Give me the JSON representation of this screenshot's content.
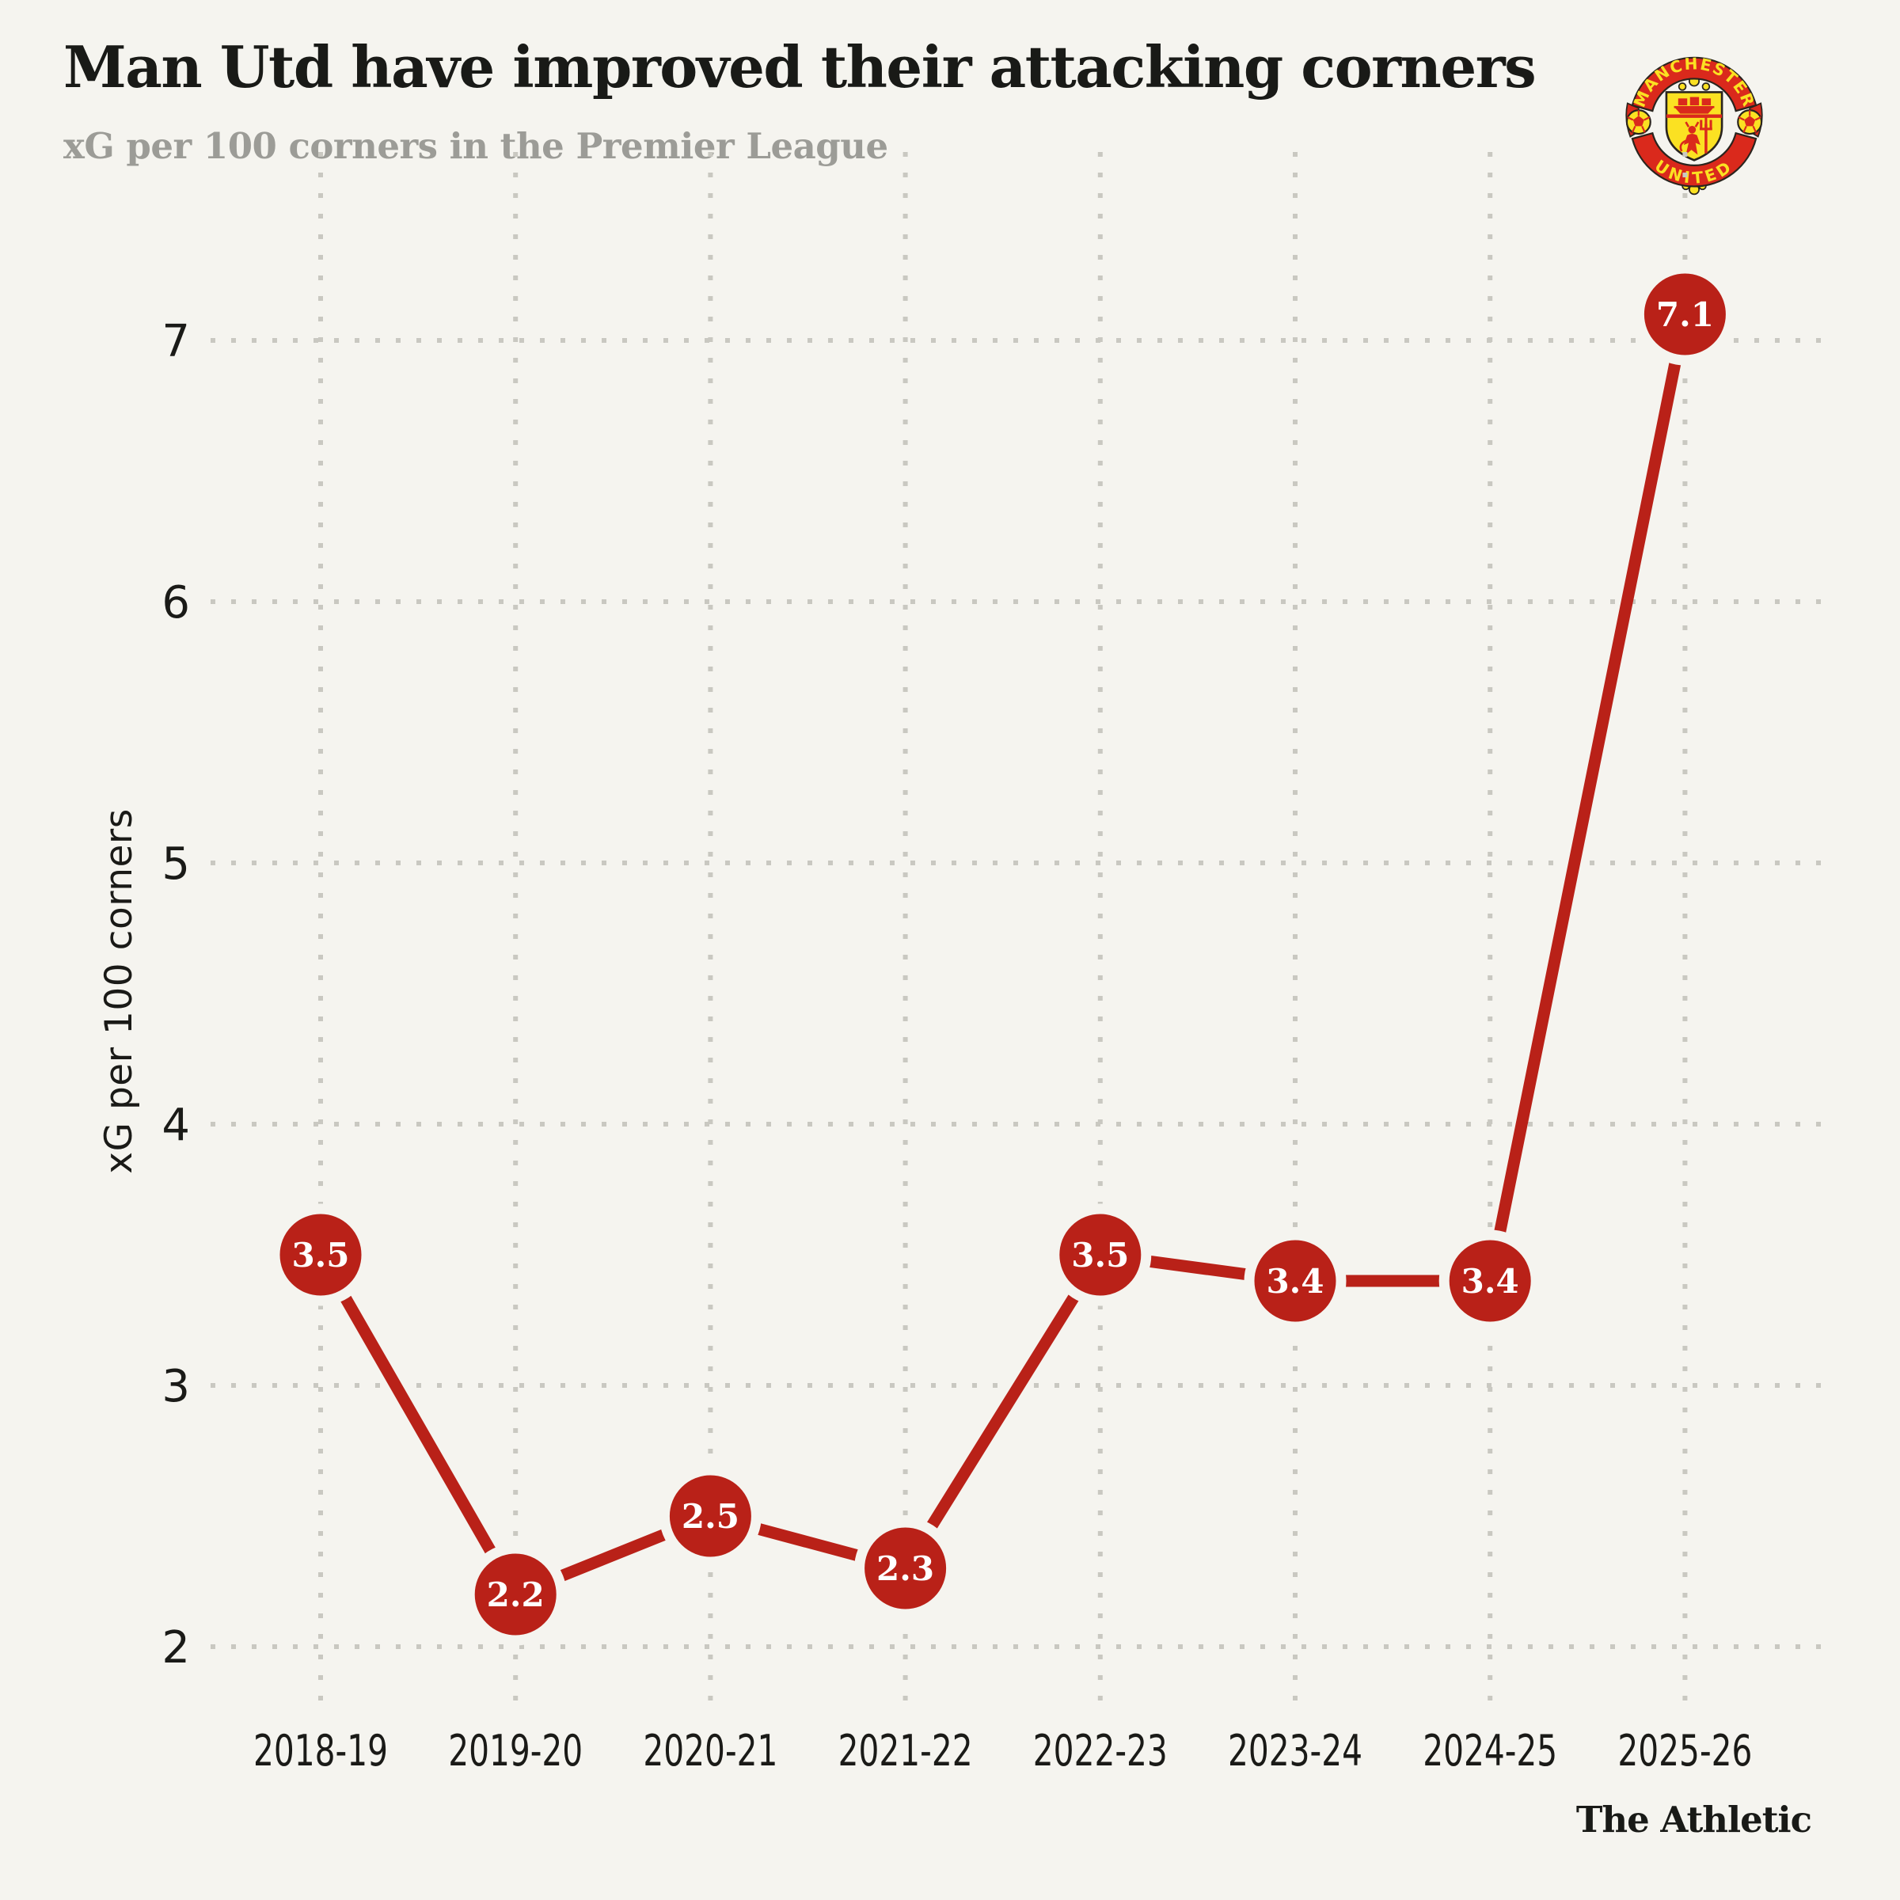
{
  "header": {
    "title": "Man Utd have improved their attacking corners",
    "subtitle": "xG per 100 corners in the Premier League"
  },
  "branding": {
    "crest": "manchester-united-crest",
    "crest_top_text": "MANCHESTER",
    "crest_bottom_text": "UNITED",
    "footer_logo": "The Athletic"
  },
  "colors": {
    "background": "#f5f4ef",
    "line": "#b92118",
    "marker": "#b92118",
    "marker_label": "#ffffff",
    "grid_dots": "#c9c8c1",
    "text_dark": "#191a17",
    "subtitle_gray": "#9c9c97",
    "crest_red": "#da291c",
    "crest_yellow": "#fbe122",
    "crest_outline": "#2a241e"
  },
  "chart_data": {
    "type": "line",
    "title": "Man Utd have improved their attacking corners",
    "subtitle": "xG per 100 corners in the Premier League",
    "categories": [
      "2018-19",
      "2019-20",
      "2020-21",
      "2021-22",
      "2022-23",
      "2023-24",
      "2024-25",
      "2025-26"
    ],
    "values": [
      3.5,
      2.2,
      2.5,
      2.3,
      3.5,
      3.4,
      3.4,
      7.1
    ],
    "point_labels": [
      "3.5",
      "2.2",
      "2.5",
      "2.3",
      "3.5",
      "3.4",
      "3.4",
      "7.1"
    ],
    "xlabel": "",
    "ylabel": "xG per 100 corners",
    "y_ticks": [
      2,
      3,
      4,
      5,
      6,
      7
    ],
    "ylim": [
      1.55,
      7.75
    ],
    "grid": "dotted-both-axes",
    "legend": "none",
    "marker_style": "filled-circle-with-value-label",
    "source_logo": "The Athletic"
  }
}
